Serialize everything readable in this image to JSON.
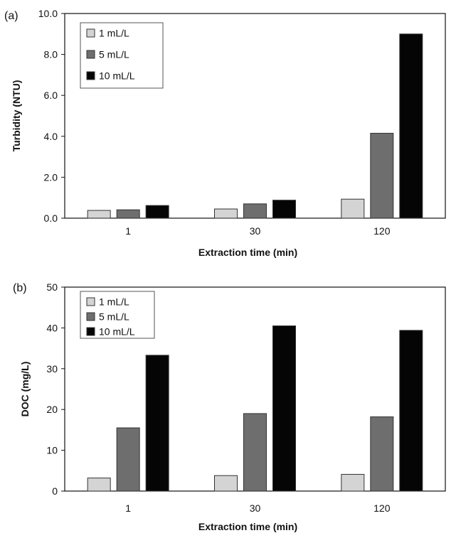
{
  "chart_data": [
    {
      "type": "bar",
      "panel_label": "(a)",
      "categories": [
        "1",
        "30",
        "120"
      ],
      "series": [
        {
          "name": "1 mL/L",
          "values": [
            0.38,
            0.45,
            0.93
          ]
        },
        {
          "name": "5 mL/L",
          "values": [
            0.41,
            0.7,
            4.15
          ]
        },
        {
          "name": "10 mL/L",
          "values": [
            0.62,
            0.88,
            9.0
          ]
        }
      ],
      "xlabel": "Extraction time (min)",
      "ylabel": "Turbidity (NTU)",
      "ylim": [
        0,
        10
      ],
      "yticks": [
        "0.0",
        "2.0",
        "4.0",
        "6.0",
        "8.0",
        "10.0"
      ],
      "ytick_values": [
        0,
        2,
        4,
        6,
        8,
        10
      ],
      "grid": false,
      "legend_position": "top-left",
      "colors": [
        "#d4d4d4",
        "#6e6e6e",
        "#050505"
      ]
    },
    {
      "type": "bar",
      "panel_label": "(b)",
      "categories": [
        "1",
        "30",
        "120"
      ],
      "series": [
        {
          "name": "1 mL/L",
          "values": [
            3.2,
            3.8,
            4.1
          ]
        },
        {
          "name": "5 mL/L",
          "values": [
            15.5,
            19.0,
            18.2
          ]
        },
        {
          "name": "10 mL/L",
          "values": [
            33.3,
            40.5,
            39.4
          ]
        }
      ],
      "xlabel": "Extraction time (min)",
      "ylabel": "DOC (mg/L)",
      "ylim": [
        0,
        50
      ],
      "yticks": [
        "0",
        "10",
        "20",
        "30",
        "40",
        "50"
      ],
      "ytick_values": [
        0,
        10,
        20,
        30,
        40,
        50
      ],
      "grid": false,
      "legend_position": "top-left",
      "colors": [
        "#d4d4d4",
        "#6e6e6e",
        "#050505"
      ]
    }
  ]
}
